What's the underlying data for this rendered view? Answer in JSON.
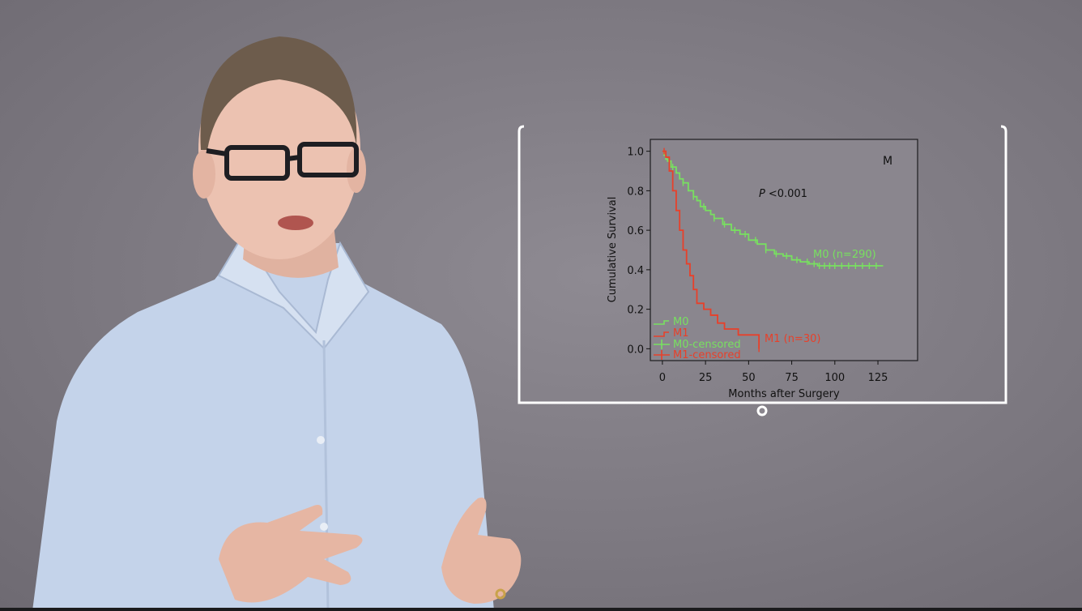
{
  "chart_data": {
    "type": "line",
    "title": "",
    "panel_label": "M",
    "annotation_prefix": "P",
    "annotation_suffix": "<0.001",
    "xlabel": "Months after Surgery",
    "ylabel": "Cumulative Survival",
    "xlim": [
      -7,
      148
    ],
    "ylim": [
      -0.06,
      1.06
    ],
    "xticks": [
      0,
      25,
      50,
      75,
      100,
      125
    ],
    "yticks": [
      "0.0",
      "0.2",
      "0.4",
      "0.6",
      "0.8",
      "1.0"
    ],
    "ytick_values": [
      0.0,
      0.2,
      0.4,
      0.6,
      0.8,
      1.0
    ],
    "legend_placement": "bottom-left",
    "legend": [
      "M0",
      "M1",
      "M0-censored",
      "M1-censored"
    ],
    "series": [
      {
        "name": "M0",
        "end_label": "M0 (n=290)",
        "color": "#78e060",
        "x": [
          0,
          1,
          2,
          3,
          5,
          8,
          10,
          12,
          15,
          18,
          20,
          22,
          25,
          28,
          30,
          35,
          40,
          45,
          50,
          55,
          60,
          65,
          70,
          75,
          80,
          85,
          90,
          95,
          100,
          110,
          120,
          128
        ],
        "y": [
          1.0,
          0.98,
          0.96,
          0.95,
          0.92,
          0.89,
          0.86,
          0.84,
          0.8,
          0.77,
          0.75,
          0.72,
          0.7,
          0.68,
          0.66,
          0.63,
          0.6,
          0.58,
          0.55,
          0.53,
          0.5,
          0.48,
          0.47,
          0.45,
          0.44,
          0.43,
          0.42,
          0.42,
          0.42,
          0.42,
          0.42,
          0.42
        ],
        "censored_x": [
          6,
          12,
          18,
          24,
          30,
          36,
          42,
          48,
          54,
          60,
          66,
          72,
          78,
          84,
          88,
          91,
          94,
          97,
          100,
          104,
          108,
          112,
          116,
          120,
          124
        ]
      },
      {
        "name": "M1",
        "end_label": "M1 (n=30)",
        "color": "#e8402a",
        "x": [
          0,
          2,
          4,
          6,
          8,
          10,
          12,
          14,
          16,
          18,
          20,
          24,
          28,
          32,
          36,
          40,
          44,
          52,
          56
        ],
        "y": [
          1.0,
          0.97,
          0.9,
          0.8,
          0.7,
          0.6,
          0.5,
          0.43,
          0.37,
          0.3,
          0.23,
          0.2,
          0.17,
          0.13,
          0.1,
          0.1,
          0.07,
          0.07,
          0.0
        ],
        "censored_x": [
          1,
          56
        ]
      }
    ]
  }
}
